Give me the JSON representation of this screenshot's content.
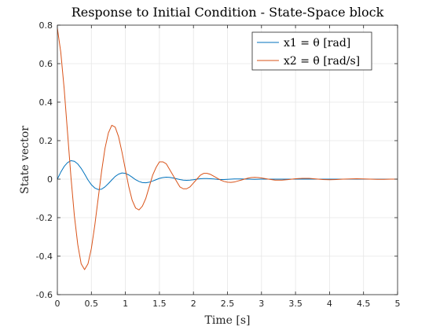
{
  "chart_data": {
    "type": "line",
    "title": "Response to Initial Condition - State-Space block",
    "xlabel": "Time [s]",
    "ylabel": "State vector",
    "xlim": [
      0,
      5
    ],
    "ylim": [
      -0.6,
      0.8
    ],
    "xticks": [
      0,
      0.5,
      1,
      1.5,
      2,
      2.5,
      3,
      3.5,
      4,
      4.5,
      5
    ],
    "xtick_labels": [
      "0",
      "0.5",
      "1",
      "1.5",
      "2",
      "2.5",
      "3",
      "3.5",
      "4",
      "4.5",
      "5"
    ],
    "yticks": [
      -0.6,
      -0.4,
      -0.2,
      0,
      0.2,
      0.4,
      0.6,
      0.8
    ],
    "ytick_labels": [
      "-0.6",
      "-0.4",
      "-0.2",
      "0",
      "0.2",
      "0.4",
      "0.6",
      "0.8"
    ],
    "grid": true,
    "legend_position": "top-right",
    "series": [
      {
        "name": "x1 = θ [rad]",
        "color": "#0072BD",
        "x": [
          0,
          0.05,
          0.1,
          0.15,
          0.2,
          0.25,
          0.3,
          0.35,
          0.4,
          0.45,
          0.5,
          0.55,
          0.6,
          0.65,
          0.7,
          0.75,
          0.8,
          0.85,
          0.9,
          0.95,
          1.0,
          1.05,
          1.1,
          1.15,
          1.2,
          1.25,
          1.3,
          1.35,
          1.4,
          1.45,
          1.5,
          1.55,
          1.6,
          1.65,
          1.7,
          1.75,
          1.8,
          1.85,
          1.9,
          1.95,
          2.0,
          2.05,
          2.1,
          2.15,
          2.2,
          2.25,
          2.3,
          2.35,
          2.4,
          2.45,
          2.5,
          2.6,
          2.7,
          2.8,
          2.9,
          3.0,
          3.1,
          3.2,
          3.3,
          3.4,
          3.5,
          3.6,
          3.7,
          3.8,
          3.9,
          4.0,
          4.1,
          4.2,
          4.3,
          4.4,
          4.5,
          4.6,
          4.7,
          4.8,
          4.9,
          5.0
        ],
        "y": [
          0.0,
          0.036,
          0.066,
          0.086,
          0.096,
          0.093,
          0.079,
          0.056,
          0.027,
          -0.004,
          -0.029,
          -0.046,
          -0.054,
          -0.052,
          -0.04,
          -0.023,
          -0.004,
          0.014,
          0.026,
          0.032,
          0.03,
          0.022,
          0.01,
          -0.003,
          -0.012,
          -0.018,
          -0.019,
          -0.016,
          -0.01,
          -0.003,
          0.004,
          0.008,
          0.01,
          0.009,
          0.006,
          0.002,
          -0.002,
          -0.005,
          -0.006,
          -0.005,
          -0.003,
          0.0,
          0.002,
          0.003,
          0.003,
          0.002,
          0.001,
          -0.001,
          -0.002,
          -0.002,
          -0.001,
          0.001,
          0.001,
          0.0,
          -0.001,
          0.0,
          0.0,
          0.0,
          0.0,
          0.0,
          0.0,
          0.0,
          0.0,
          0.0,
          0.0,
          0.0,
          0.0,
          0.0,
          0.0,
          0.0,
          0.0,
          0.0,
          0.0,
          0.0,
          0.0,
          0.0
        ]
      },
      {
        "name": "x2 = θ̇ [rad/s]",
        "color": "#D95319",
        "x": [
          0,
          0.05,
          0.1,
          0.15,
          0.2,
          0.25,
          0.3,
          0.35,
          0.4,
          0.45,
          0.5,
          0.55,
          0.6,
          0.65,
          0.7,
          0.75,
          0.8,
          0.85,
          0.9,
          0.95,
          1.0,
          1.05,
          1.1,
          1.15,
          1.2,
          1.25,
          1.3,
          1.35,
          1.4,
          1.45,
          1.5,
          1.55,
          1.6,
          1.65,
          1.7,
          1.75,
          1.8,
          1.85,
          1.9,
          1.95,
          2.0,
          2.05,
          2.1,
          2.15,
          2.2,
          2.25,
          2.3,
          2.35,
          2.4,
          2.45,
          2.5,
          2.55,
          2.6,
          2.65,
          2.7,
          2.75,
          2.8,
          2.85,
          2.9,
          2.95,
          3.0,
          3.1,
          3.2,
          3.3,
          3.4,
          3.5,
          3.6,
          3.7,
          3.8,
          3.9,
          4.0,
          4.1,
          4.2,
          4.3,
          4.4,
          4.5,
          4.6,
          4.7,
          4.8,
          4.9,
          5.0
        ],
        "y": [
          0.785,
          0.66,
          0.47,
          0.24,
          0.01,
          -0.19,
          -0.34,
          -0.44,
          -0.47,
          -0.44,
          -0.36,
          -0.24,
          -0.1,
          0.04,
          0.16,
          0.24,
          0.28,
          0.27,
          0.22,
          0.14,
          0.05,
          -0.04,
          -0.11,
          -0.15,
          -0.16,
          -0.14,
          -0.1,
          -0.04,
          0.02,
          0.06,
          0.09,
          0.09,
          0.08,
          0.05,
          0.02,
          -0.01,
          -0.04,
          -0.05,
          -0.05,
          -0.04,
          -0.02,
          0.0,
          0.02,
          0.03,
          0.03,
          0.025,
          0.015,
          0.005,
          -0.005,
          -0.012,
          -0.016,
          -0.017,
          -0.015,
          -0.01,
          -0.005,
          0.0,
          0.005,
          0.008,
          0.009,
          0.008,
          0.006,
          0.0,
          -0.005,
          -0.005,
          -0.002,
          0.002,
          0.004,
          0.004,
          0.001,
          -0.002,
          -0.003,
          -0.002,
          0.0,
          0.001,
          0.002,
          0.001,
          0.0,
          -0.001,
          -0.001,
          0.0,
          0.0
        ]
      }
    ]
  }
}
